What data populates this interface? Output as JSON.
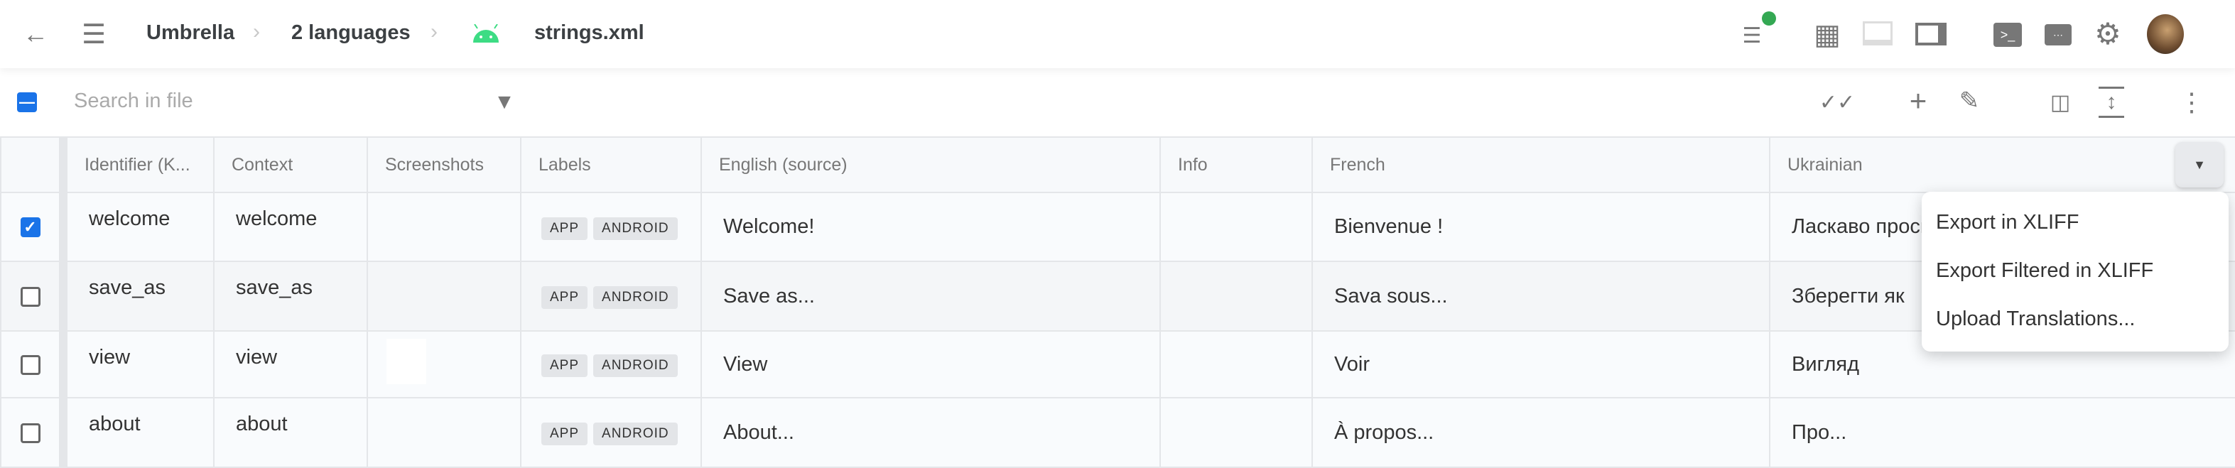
{
  "header": {
    "breadcrumb": [
      "Umbrella",
      "2 languages",
      "strings.xml"
    ],
    "icons": [
      "back-arrow-icon",
      "menu-icon",
      "android-icon",
      "edit-notes-icon",
      "grid-icon",
      "laptop-icon",
      "side-panel-icon",
      "terminal-icon",
      "keyboard-icon",
      "settings-icon",
      "avatar"
    ],
    "status_dot_color": "#34a853"
  },
  "toolbar": {
    "search_placeholder": "Search in file",
    "icons": [
      "filter-icon",
      "done-all-icon",
      "add-icon",
      "edit-icon",
      "add-column-icon",
      "expand-height-icon",
      "more-vert-icon"
    ]
  },
  "table": {
    "columns": [
      "Identifier (K...",
      "Context",
      "Screenshots",
      "Labels",
      "English (source)",
      "Info",
      "French",
      "Ukrainian"
    ],
    "rows": [
      {
        "checked": true,
        "id": "welcome",
        "context": "welcome",
        "labels": [
          "APP",
          "ANDROID"
        ],
        "english": "Welcome!",
        "info": "",
        "french": "Bienvenue !",
        "ukrainian": "Ласкаво просимо"
      },
      {
        "checked": false,
        "id": "save_as",
        "context": "save_as",
        "labels": [
          "APP",
          "ANDROID"
        ],
        "english": "Save as...",
        "info": "",
        "french": "Sava sous...",
        "ukrainian": "Зберегти як"
      },
      {
        "checked": false,
        "id": "view",
        "context": "view",
        "labels": [
          "APP",
          "ANDROID"
        ],
        "english": "View",
        "info": "",
        "french": "Voir",
        "ukrainian": "Вигляд"
      },
      {
        "checked": false,
        "id": "about",
        "context": "about",
        "labels": [
          "APP",
          "ANDROID"
        ],
        "english": "About...",
        "info": "",
        "french": "À propos...",
        "ukrainian": "Про..."
      }
    ]
  },
  "menu": {
    "items": [
      "Export in XLIFF",
      "Export Filtered in XLIFF",
      "Upload Translations..."
    ]
  },
  "colors": {
    "accent": "#1a73e8",
    "android": "#3ddc84"
  }
}
